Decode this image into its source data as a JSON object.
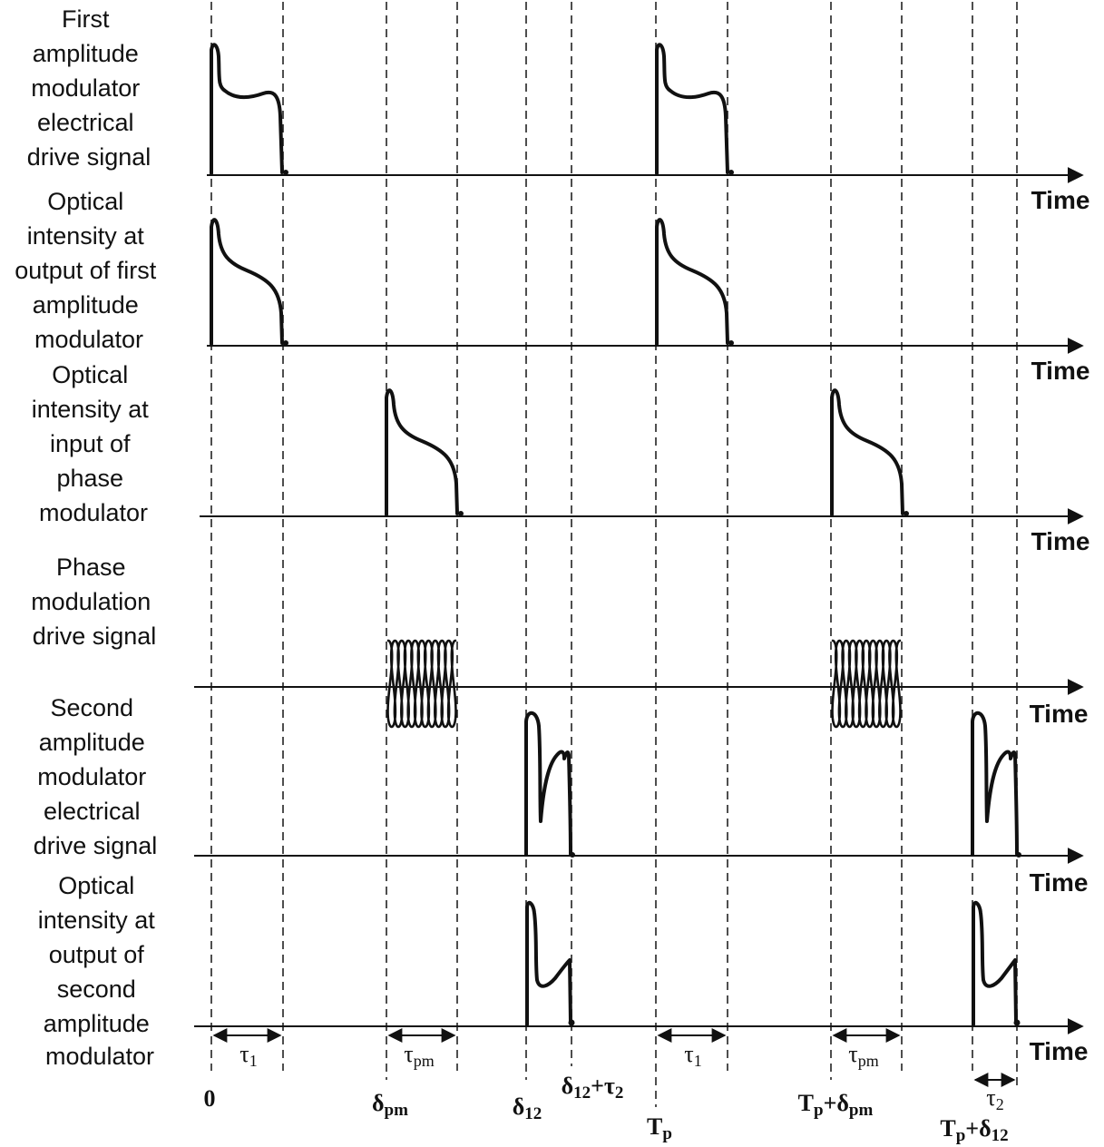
{
  "rows": [
    {
      "label_lines": [
        "First",
        "amplitude",
        "modulator",
        "electrical",
        "drive signal"
      ],
      "axis_label": "Time",
      "waveform": "first-am-drive"
    },
    {
      "label_lines": [
        "Optical",
        "intensity at",
        "output of first",
        "amplitude",
        "modulator"
      ],
      "axis_label": "Time",
      "waveform": "first-am-output"
    },
    {
      "label_lines": [
        "Optical",
        "intensity at",
        "input of",
        "phase",
        "modulator"
      ],
      "axis_label": "Time",
      "waveform": "pm-input"
    },
    {
      "label_lines": [
        "Phase",
        "modulation",
        "drive signal"
      ],
      "axis_label": "Time",
      "waveform": "pm-drive"
    },
    {
      "label_lines": [
        "Second",
        "amplitude",
        "modulator",
        "electrical",
        "drive signal"
      ],
      "axis_label": "Time",
      "waveform": "second-am-drive"
    },
    {
      "label_lines": [
        "Optical",
        "intensity at",
        "output of",
        "second",
        "amplitude",
        "modulator"
      ],
      "axis_label": "Time",
      "waveform": "second-am-output"
    }
  ],
  "time_markers": [
    {
      "main": "0",
      "sub": ""
    },
    {
      "main": "δ",
      "sub": "pm"
    },
    {
      "main": "δ",
      "sub": "12"
    },
    {
      "main": "δ",
      "sub": "12",
      "suffix": "+τ",
      "suffix_sub": "2"
    },
    {
      "main": "T",
      "sub": "p"
    },
    {
      "main": "T",
      "sub": "p",
      "suffix": "+δ",
      "suffix_sub": "pm"
    },
    {
      "main": "T",
      "sub": "p",
      "suffix": "+δ",
      "suffix_sub": "12"
    }
  ],
  "durations": [
    {
      "main": "τ",
      "sub": "1"
    },
    {
      "main": "τ",
      "sub": "pm"
    },
    {
      "main": "τ",
      "sub": "1"
    },
    {
      "main": "τ",
      "sub": "pm"
    },
    {
      "main": "τ",
      "sub": "2"
    }
  ],
  "colors": {
    "ink": "#111111",
    "background": "#ffffff"
  }
}
